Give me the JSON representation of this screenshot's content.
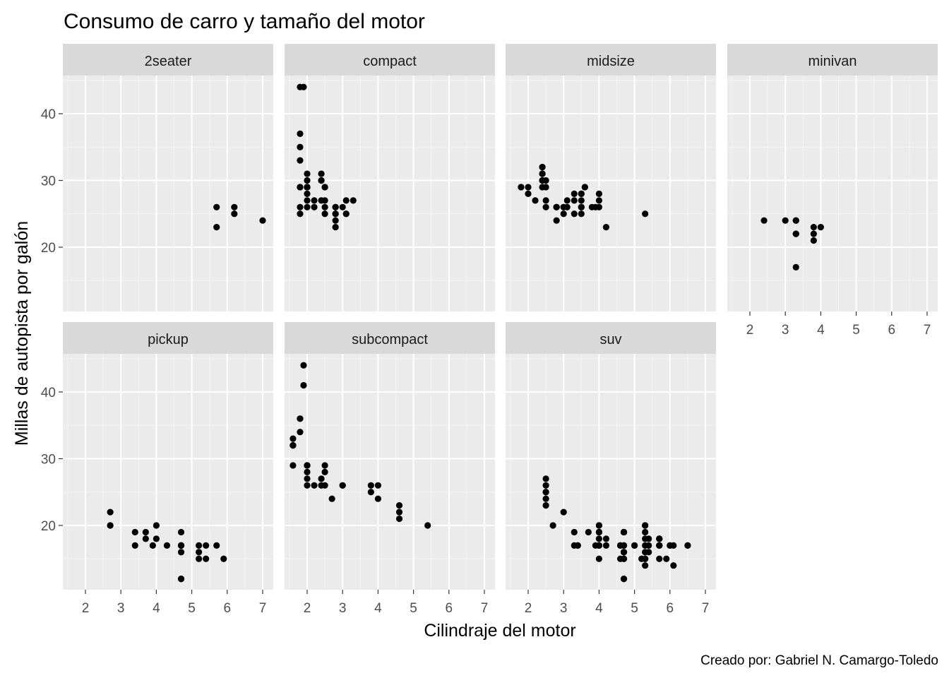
{
  "chart_data": {
    "type": "scatter",
    "title": "Consumo de carro y tamaño del motor",
    "xlabel": "Cilindraje del motor",
    "ylabel": "Millas de autopista por galón",
    "caption": "Creado por: Gabriel N. Camargo-Toledo",
    "xlim": [
      1.6,
      7.0
    ],
    "ylim": [
      12,
      44
    ],
    "x_ticks": [
      2,
      3,
      4,
      5,
      6,
      7
    ],
    "y_ticks": [
      20,
      30,
      40
    ],
    "grid": true,
    "facets": [
      {
        "name": "2seater",
        "points": [
          [
            5.7,
            26
          ],
          [
            5.7,
            23
          ],
          [
            6.2,
            26
          ],
          [
            6.2,
            25
          ],
          [
            7.0,
            24
          ]
        ]
      },
      {
        "name": "compact",
        "points": [
          [
            1.8,
            29
          ],
          [
            1.8,
            29
          ],
          [
            2.0,
            31
          ],
          [
            2.0,
            30
          ],
          [
            2.8,
            26
          ],
          [
            2.8,
            26
          ],
          [
            3.1,
            27
          ],
          [
            1.8,
            26
          ],
          [
            1.8,
            25
          ],
          [
            2.0,
            28
          ],
          [
            2.0,
            27
          ],
          [
            2.8,
            25
          ],
          [
            2.8,
            25
          ],
          [
            3.1,
            25
          ],
          [
            3.1,
            25
          ],
          [
            2.2,
            26
          ],
          [
            2.2,
            27
          ],
          [
            2.4,
            30
          ],
          [
            2.4,
            30
          ],
          [
            3.0,
            26
          ],
          [
            3.3,
            27
          ],
          [
            1.9,
            44
          ],
          [
            2.0,
            29
          ],
          [
            2.0,
            26
          ],
          [
            2.0,
            29
          ],
          [
            2.0,
            29
          ],
          [
            2.5,
            29
          ],
          [
            2.5,
            29
          ],
          [
            2.8,
            23
          ],
          [
            2.8,
            24
          ],
          [
            1.8,
            44
          ],
          [
            1.8,
            33
          ],
          [
            1.8,
            35
          ],
          [
            1.8,
            37
          ],
          [
            2.0,
            29
          ],
          [
            2.4,
            31
          ],
          [
            2.4,
            27
          ],
          [
            2.5,
            27
          ],
          [
            2.5,
            26
          ],
          [
            2.5,
            25
          ]
        ]
      },
      {
        "name": "midsize",
        "points": [
          [
            2.8,
            26
          ],
          [
            3.1,
            26
          ],
          [
            3.5,
            28
          ],
          [
            3.6,
            29
          ],
          [
            3.9,
            26
          ],
          [
            2.4,
            31
          ],
          [
            2.4,
            30
          ],
          [
            3.1,
            27
          ],
          [
            3.5,
            26
          ],
          [
            3.6,
            29
          ],
          [
            5.3,
            25
          ],
          [
            1.8,
            29
          ],
          [
            1.8,
            29
          ],
          [
            2.0,
            28
          ],
          [
            2.0,
            29
          ],
          [
            2.8,
            26
          ],
          [
            2.8,
            26
          ],
          [
            2.4,
            32
          ],
          [
            2.4,
            32
          ],
          [
            3.0,
            26
          ],
          [
            3.0,
            26
          ],
          [
            3.8,
            26
          ],
          [
            4.2,
            23
          ],
          [
            2.5,
            29
          ],
          [
            2.5,
            30
          ],
          [
            3.5,
            27
          ],
          [
            3.5,
            26
          ],
          [
            3.5,
            25
          ],
          [
            2.5,
            27
          ],
          [
            2.5,
            26
          ],
          [
            2.4,
            30
          ],
          [
            2.4,
            31
          ],
          [
            3.3,
            28
          ],
          [
            3.3,
            25
          ],
          [
            3.3,
            27
          ],
          [
            3.5,
            28
          ],
          [
            3.5,
            26
          ],
          [
            4.0,
            26
          ],
          [
            4.0,
            27
          ],
          [
            4.0,
            28
          ],
          [
            2.2,
            27
          ],
          [
            2.4,
            29
          ],
          [
            3.0,
            25
          ],
          [
            2.8,
            24
          ]
        ]
      },
      {
        "name": "minivan",
        "points": [
          [
            2.4,
            24
          ],
          [
            3.0,
            24
          ],
          [
            3.3,
            22
          ],
          [
            3.3,
            22
          ],
          [
            3.3,
            24
          ],
          [
            3.3,
            24
          ],
          [
            3.3,
            17
          ],
          [
            3.8,
            22
          ],
          [
            3.8,
            21
          ],
          [
            3.8,
            23
          ],
          [
            4.0,
            23
          ]
        ]
      },
      {
        "name": "pickup",
        "points": [
          [
            2.7,
            20
          ],
          [
            2.7,
            20
          ],
          [
            2.7,
            22
          ],
          [
            3.4,
            17
          ],
          [
            3.4,
            19
          ],
          [
            3.7,
            18
          ],
          [
            3.7,
            19
          ],
          [
            3.9,
            17
          ],
          [
            4.0,
            20
          ],
          [
            4.0,
            18
          ],
          [
            4.3,
            17
          ],
          [
            4.7,
            17
          ],
          [
            4.7,
            16
          ],
          [
            4.7,
            12
          ],
          [
            4.7,
            17
          ],
          [
            4.7,
            19
          ],
          [
            5.2,
            15
          ],
          [
            5.2,
            17
          ],
          [
            5.2,
            16
          ],
          [
            5.4,
            17
          ],
          [
            5.4,
            15
          ],
          [
            5.7,
            17
          ],
          [
            5.9,
            15
          ],
          [
            4.7,
            12
          ],
          [
            4.7,
            17
          ]
        ]
      },
      {
        "name": "subcompact",
        "points": [
          [
            3.8,
            26
          ],
          [
            3.8,
            25
          ],
          [
            4.0,
            26
          ],
          [
            4.0,
            24
          ],
          [
            4.6,
            21
          ],
          [
            4.6,
            22
          ],
          [
            4.6,
            23
          ],
          [
            5.4,
            20
          ],
          [
            1.6,
            33
          ],
          [
            1.6,
            32
          ],
          [
            1.6,
            32
          ],
          [
            1.6,
            29
          ],
          [
            1.6,
            32
          ],
          [
            1.8,
            34
          ],
          [
            1.8,
            36
          ],
          [
            1.8,
            36
          ],
          [
            2.0,
            29
          ],
          [
            2.4,
            26
          ],
          [
            2.4,
            27
          ],
          [
            3.0,
            26
          ],
          [
            3.0,
            26
          ],
          [
            1.9,
            44
          ],
          [
            1.9,
            41
          ],
          [
            2.0,
            29
          ],
          [
            2.0,
            26
          ],
          [
            2.0,
            28
          ],
          [
            2.0,
            29
          ],
          [
            2.2,
            26
          ],
          [
            2.5,
            29
          ],
          [
            2.5,
            28
          ],
          [
            2.5,
            26
          ],
          [
            2.7,
            24
          ],
          [
            2.0,
            27
          ]
        ]
      },
      {
        "name": "suv",
        "points": [
          [
            5.3,
            20
          ],
          [
            5.3,
            15
          ],
          [
            5.3,
            20
          ],
          [
            5.7,
            17
          ],
          [
            6.0,
            17
          ],
          [
            5.7,
            17
          ],
          [
            6.5,
            17
          ],
          [
            3.7,
            19
          ],
          [
            3.9,
            17
          ],
          [
            4.7,
            17
          ],
          [
            4.7,
            16
          ],
          [
            4.7,
            19
          ],
          [
            5.2,
            15
          ],
          [
            5.7,
            17
          ],
          [
            5.9,
            15
          ],
          [
            4.7,
            12
          ],
          [
            4.7,
            19
          ],
          [
            4.7,
            15
          ],
          [
            4.7,
            17
          ],
          [
            4.7,
            16
          ],
          [
            5.7,
            18
          ],
          [
            6.1,
            14
          ],
          [
            4.0,
            19
          ],
          [
            4.0,
            19
          ],
          [
            4.0,
            20
          ],
          [
            4.0,
            17
          ],
          [
            4.6,
            17
          ],
          [
            5.0,
            17
          ],
          [
            4.2,
            18
          ],
          [
            4.2,
            17
          ],
          [
            4.6,
            15
          ],
          [
            5.4,
            17
          ],
          [
            5.4,
            18
          ],
          [
            5.4,
            16
          ],
          [
            4.0,
            17
          ],
          [
            4.0,
            19
          ],
          [
            4.0,
            20
          ],
          [
            4.0,
            15
          ],
          [
            4.6,
            17
          ],
          [
            5.0,
            17
          ],
          [
            3.3,
            17
          ],
          [
            3.3,
            19
          ],
          [
            4.0,
            17
          ],
          [
            4.7,
            16
          ],
          [
            5.3,
            15
          ],
          [
            5.3,
            16
          ],
          [
            5.3,
            14
          ],
          [
            5.7,
            15
          ],
          [
            6.5,
            17
          ],
          [
            2.5,
            25
          ],
          [
            2.5,
            27
          ],
          [
            2.5,
            26
          ],
          [
            2.5,
            23
          ],
          [
            2.5,
            25
          ],
          [
            2.5,
            24
          ],
          [
            2.7,
            20
          ],
          [
            3.0,
            22
          ],
          [
            3.4,
            17
          ],
          [
            3.4,
            17
          ],
          [
            4.0,
            18
          ],
          [
            4.7,
            12
          ],
          [
            4.7,
            19
          ],
          [
            5.3,
            19
          ],
          [
            5.3,
            18
          ],
          [
            6.1,
            17
          ],
          [
            4.7,
            15
          ],
          [
            4.7,
            19
          ],
          [
            5.7,
            18
          ],
          [
            5.3,
            17
          ],
          [
            5.3,
            15
          ],
          [
            5.7,
            18
          ],
          [
            6.0,
            17
          ]
        ]
      }
    ]
  }
}
